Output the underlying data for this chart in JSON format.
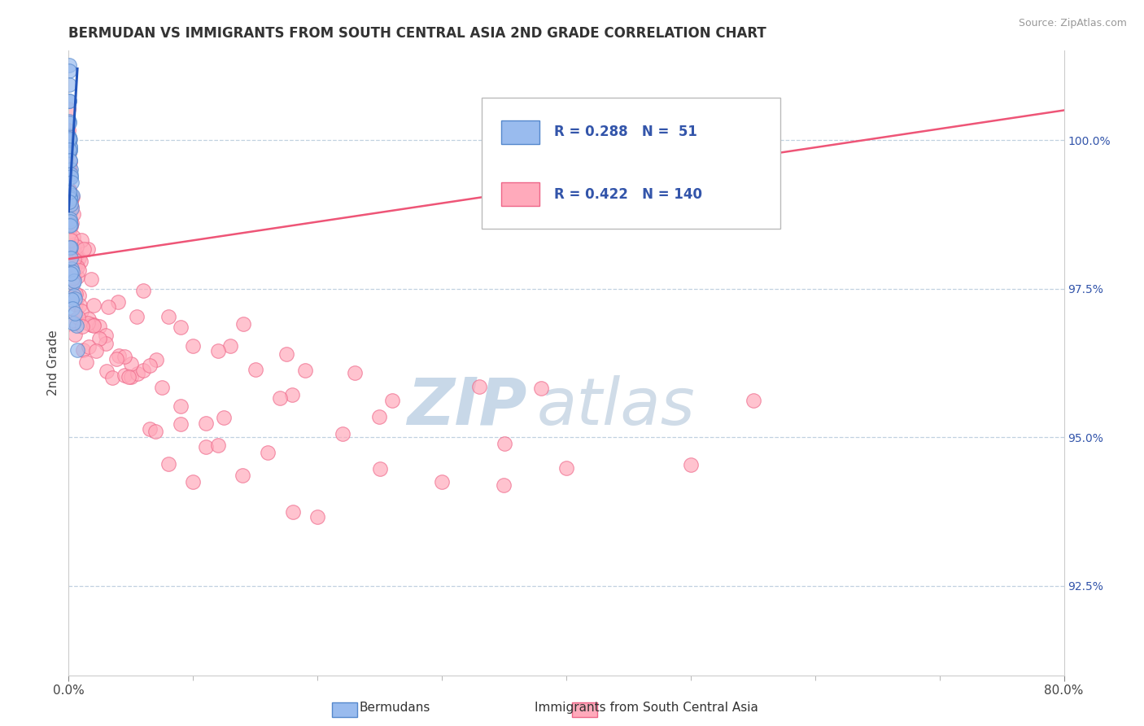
{
  "title": "BERMUDAN VS IMMIGRANTS FROM SOUTH CENTRAL ASIA 2ND GRADE CORRELATION CHART",
  "source": "Source: ZipAtlas.com",
  "ylabel": "2nd Grade",
  "right_yticks": [
    100.0,
    97.5,
    95.0,
    92.5
  ],
  "right_ytick_labels": [
    "100.0%",
    "97.5%",
    "95.0%",
    "92.5%"
  ],
  "legend_blue_label": "Bermudans",
  "legend_pink_label": "Immigrants from South Central Asia",
  "legend_R_blue": "0.288",
  "legend_N_blue": " 51",
  "legend_R_pink": "0.422",
  "legend_N_pink": "140",
  "blue_color": "#99BBEE",
  "pink_color": "#FFAABB",
  "blue_edge_color": "#5588CC",
  "pink_edge_color": "#EE6688",
  "blue_line_color": "#2255BB",
  "pink_line_color": "#EE5577",
  "text_color": "#3355AA",
  "title_color": "#333333",
  "grid_color": "#BBCCDD",
  "watermark_zip_color": "#C8D8E8",
  "watermark_atlas_color": "#D0DCE8",
  "xmin": 0.0,
  "xmax": 80.0,
  "ymin": 91.0,
  "ymax": 101.5,
  "blue_x": [
    0.02,
    0.03,
    0.04,
    0.05,
    0.06,
    0.07,
    0.08,
    0.09,
    0.1,
    0.11,
    0.12,
    0.13,
    0.14,
    0.15,
    0.16,
    0.18,
    0.2,
    0.22,
    0.25,
    0.28,
    0.03,
    0.04,
    0.05,
    0.06,
    0.07,
    0.08,
    0.09,
    0.1,
    0.12,
    0.15,
    0.18,
    0.2,
    0.25,
    0.3,
    0.35,
    0.4,
    0.45,
    0.5,
    0.6,
    0.7,
    0.03,
    0.05,
    0.08,
    0.1,
    0.12,
    0.15,
    0.2,
    0.25,
    0.3,
    0.4,
    0.5
  ],
  "blue_y": [
    101.1,
    100.9,
    100.7,
    100.6,
    100.4,
    100.3,
    100.2,
    100.1,
    100.0,
    99.9,
    99.8,
    99.7,
    99.6,
    99.5,
    99.4,
    99.3,
    99.2,
    99.1,
    99.0,
    98.9,
    100.5,
    100.3,
    100.1,
    99.9,
    99.7,
    99.5,
    99.3,
    99.1,
    98.9,
    98.7,
    98.5,
    98.3,
    98.1,
    97.9,
    97.7,
    97.5,
    97.3,
    97.1,
    96.9,
    96.7,
    99.0,
    98.8,
    98.6,
    98.4,
    98.2,
    98.0,
    97.8,
    97.6,
    97.4,
    97.2,
    97.0
  ],
  "pink_x": [
    0.01,
    0.02,
    0.03,
    0.04,
    0.05,
    0.06,
    0.07,
    0.08,
    0.09,
    0.1,
    0.12,
    0.14,
    0.16,
    0.18,
    0.2,
    0.25,
    0.3,
    0.35,
    0.4,
    0.45,
    0.5,
    0.6,
    0.7,
    0.8,
    0.9,
    1.0,
    1.2,
    1.4,
    1.6,
    1.8,
    2.0,
    2.5,
    3.0,
    3.5,
    4.0,
    4.5,
    5.0,
    5.5,
    6.0,
    6.5,
    7.0,
    8.0,
    9.0,
    10.0,
    11.0,
    12.0,
    14.0,
    16.0,
    18.0,
    20.0,
    0.02,
    0.04,
    0.06,
    0.08,
    0.1,
    0.15,
    0.2,
    0.3,
    0.4,
    0.5,
    0.6,
    0.8,
    1.0,
    1.5,
    2.0,
    3.0,
    4.0,
    5.0,
    7.0,
    9.0,
    11.0,
    13.0,
    15.0,
    18.0,
    22.0,
    25.0,
    30.0,
    35.0,
    40.0,
    50.0,
    0.03,
    0.05,
    0.08,
    0.12,
    0.18,
    0.25,
    0.35,
    0.5,
    0.7,
    1.0,
    1.5,
    2.0,
    3.0,
    4.5,
    6.0,
    8.0,
    12.0,
    17.0,
    23.0,
    33.0,
    0.04,
    0.07,
    0.11,
    0.16,
    0.22,
    0.32,
    0.45,
    0.65,
    0.85,
    1.2,
    1.8,
    2.5,
    3.8,
    5.5,
    7.5,
    10.0,
    14.0,
    19.0,
    26.0,
    38.0,
    0.06,
    0.09,
    0.13,
    0.19,
    0.27,
    0.38,
    0.55,
    0.75,
    1.1,
    1.6,
    2.2,
    3.2,
    4.8,
    6.5,
    9.0,
    12.5,
    17.5,
    25.0,
    35.0,
    55.0
  ],
  "pink_y": [
    99.5,
    99.3,
    99.2,
    99.1,
    99.0,
    98.8,
    98.7,
    98.6,
    98.5,
    98.4,
    98.3,
    98.2,
    98.1,
    98.0,
    97.9,
    97.8,
    97.7,
    97.6,
    97.5,
    97.4,
    97.3,
    97.2,
    97.1,
    97.0,
    96.9,
    96.8,
    96.7,
    96.6,
    96.5,
    96.4,
    96.3,
    96.2,
    96.1,
    96.0,
    95.9,
    95.8,
    95.7,
    95.6,
    95.5,
    95.4,
    95.3,
    95.2,
    95.1,
    95.0,
    94.9,
    94.8,
    94.7,
    94.6,
    94.5,
    94.4,
    100.0,
    99.8,
    99.6,
    99.4,
    99.2,
    99.0,
    98.8,
    98.6,
    98.4,
    98.2,
    98.0,
    97.8,
    97.6,
    97.4,
    97.2,
    97.0,
    96.8,
    96.6,
    96.4,
    96.2,
    96.0,
    95.8,
    95.6,
    95.4,
    95.2,
    95.0,
    94.8,
    94.6,
    94.4,
    94.2,
    99.7,
    99.5,
    99.3,
    99.1,
    98.9,
    98.7,
    98.5,
    98.3,
    98.1,
    97.9,
    97.7,
    97.5,
    97.3,
    97.1,
    96.9,
    96.7,
    96.5,
    96.3,
    96.1,
    95.9,
    99.4,
    99.2,
    99.0,
    98.8,
    98.6,
    98.4,
    98.2,
    98.0,
    97.8,
    97.6,
    97.4,
    97.2,
    97.0,
    96.8,
    96.6,
    96.4,
    96.2,
    96.0,
    95.8,
    95.6,
    99.1,
    98.9,
    98.7,
    98.5,
    98.3,
    98.1,
    97.9,
    97.7,
    97.5,
    97.3,
    97.1,
    96.9,
    96.7,
    96.5,
    96.3,
    96.1,
    95.9,
    95.7,
    95.5,
    95.3
  ]
}
